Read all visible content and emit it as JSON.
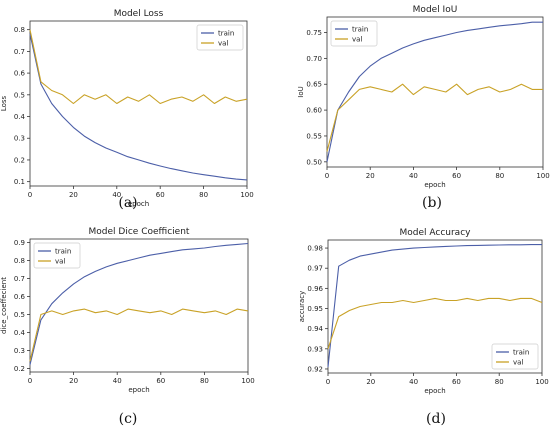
{
  "colors": {
    "train": "#4c5fa8",
    "val": "#c9a227"
  },
  "captions": [
    "(a)",
    "(b)",
    "(c)",
    "(d)"
  ],
  "chart_data": [
    {
      "type": "line",
      "title": "Model Loss",
      "xlabel": "epoch",
      "ylabel": "Loss",
      "xlim": [
        0,
        100
      ],
      "ylim": [
        0.08,
        0.84
      ],
      "xticks": [
        0,
        20,
        40,
        60,
        80,
        100
      ],
      "yticks": [
        0.1,
        0.2,
        0.3,
        0.4,
        0.5,
        0.6,
        0.7,
        0.8
      ],
      "legend": "top-right",
      "grid": false,
      "x": [
        0,
        5,
        10,
        15,
        20,
        25,
        30,
        35,
        40,
        45,
        50,
        55,
        60,
        65,
        70,
        75,
        80,
        85,
        90,
        95,
        100
      ],
      "series": [
        {
          "name": "train",
          "values": [
            0.78,
            0.55,
            0.46,
            0.4,
            0.35,
            0.31,
            0.28,
            0.255,
            0.235,
            0.215,
            0.2,
            0.185,
            0.172,
            0.16,
            0.15,
            0.14,
            0.132,
            0.125,
            0.118,
            0.112,
            0.108
          ]
        },
        {
          "name": "val",
          "values": [
            0.8,
            0.56,
            0.52,
            0.5,
            0.46,
            0.5,
            0.48,
            0.5,
            0.46,
            0.49,
            0.47,
            0.5,
            0.46,
            0.48,
            0.49,
            0.47,
            0.5,
            0.46,
            0.49,
            0.47,
            0.48
          ]
        }
      ]
    },
    {
      "type": "line",
      "title": "Model IoU",
      "xlabel": "epoch",
      "ylabel": "IoU",
      "xlim": [
        0,
        100
      ],
      "ylim": [
        0.49,
        0.78
      ],
      "xticks": [
        0,
        20,
        40,
        60,
        80,
        100
      ],
      "yticks": [
        0.5,
        0.55,
        0.6,
        0.65,
        0.7,
        0.75
      ],
      "legend": "top-left",
      "grid": false,
      "x": [
        0,
        5,
        10,
        15,
        20,
        25,
        30,
        35,
        40,
        45,
        50,
        55,
        60,
        65,
        70,
        75,
        80,
        85,
        90,
        95,
        100
      ],
      "series": [
        {
          "name": "train",
          "values": [
            0.5,
            0.6,
            0.635,
            0.665,
            0.685,
            0.7,
            0.71,
            0.72,
            0.728,
            0.735,
            0.74,
            0.745,
            0.75,
            0.754,
            0.757,
            0.76,
            0.763,
            0.765,
            0.767,
            0.77,
            0.77
          ]
        },
        {
          "name": "val",
          "values": [
            0.52,
            0.6,
            0.62,
            0.64,
            0.645,
            0.64,
            0.635,
            0.65,
            0.63,
            0.645,
            0.64,
            0.635,
            0.65,
            0.63,
            0.64,
            0.645,
            0.635,
            0.64,
            0.65,
            0.64,
            0.64
          ]
        }
      ]
    },
    {
      "type": "line",
      "title": "Model Dice Coefficient",
      "xlabel": "epoch",
      "ylabel": "dice_coeffecient",
      "xlim": [
        0,
        100
      ],
      "ylim": [
        0.18,
        0.92
      ],
      "xticks": [
        0,
        20,
        40,
        60,
        80,
        100
      ],
      "yticks": [
        0.2,
        0.3,
        0.4,
        0.5,
        0.6,
        0.7,
        0.8,
        0.9
      ],
      "legend": "top-left",
      "grid": false,
      "x": [
        0,
        5,
        10,
        15,
        20,
        25,
        30,
        35,
        40,
        45,
        50,
        55,
        60,
        65,
        70,
        75,
        80,
        85,
        90,
        95,
        100
      ],
      "series": [
        {
          "name": "train",
          "values": [
            0.22,
            0.47,
            0.56,
            0.62,
            0.67,
            0.71,
            0.74,
            0.765,
            0.785,
            0.8,
            0.815,
            0.83,
            0.84,
            0.85,
            0.86,
            0.865,
            0.87,
            0.878,
            0.885,
            0.89,
            0.895
          ]
        },
        {
          "name": "val",
          "values": [
            0.24,
            0.5,
            0.52,
            0.5,
            0.52,
            0.53,
            0.51,
            0.52,
            0.5,
            0.53,
            0.52,
            0.51,
            0.52,
            0.5,
            0.53,
            0.52,
            0.51,
            0.52,
            0.5,
            0.53,
            0.52
          ]
        }
      ]
    },
    {
      "type": "line",
      "title": "Model Accuracy",
      "xlabel": "epoch",
      "ylabel": "accuracy",
      "xlim": [
        0,
        100
      ],
      "ylim": [
        0.918,
        0.984
      ],
      "xticks": [
        0,
        20,
        40,
        60,
        80,
        100
      ],
      "yticks": [
        0.92,
        0.93,
        0.94,
        0.95,
        0.96,
        0.97,
        0.98
      ],
      "legend": "bottom-right",
      "grid": false,
      "x": [
        0,
        5,
        10,
        15,
        20,
        25,
        30,
        35,
        40,
        45,
        50,
        55,
        60,
        65,
        70,
        75,
        80,
        85,
        90,
        95,
        100
      ],
      "series": [
        {
          "name": "train",
          "values": [
            0.921,
            0.971,
            0.974,
            0.976,
            0.977,
            0.978,
            0.979,
            0.9795,
            0.98,
            0.9803,
            0.9806,
            0.9808,
            0.981,
            0.9812,
            0.9813,
            0.9814,
            0.9815,
            0.9816,
            0.9816,
            0.9817,
            0.9817
          ]
        },
        {
          "name": "val",
          "values": [
            0.93,
            0.946,
            0.949,
            0.951,
            0.952,
            0.953,
            0.953,
            0.954,
            0.953,
            0.954,
            0.955,
            0.954,
            0.954,
            0.955,
            0.954,
            0.955,
            0.955,
            0.954,
            0.955,
            0.955,
            0.953
          ]
        }
      ]
    }
  ]
}
